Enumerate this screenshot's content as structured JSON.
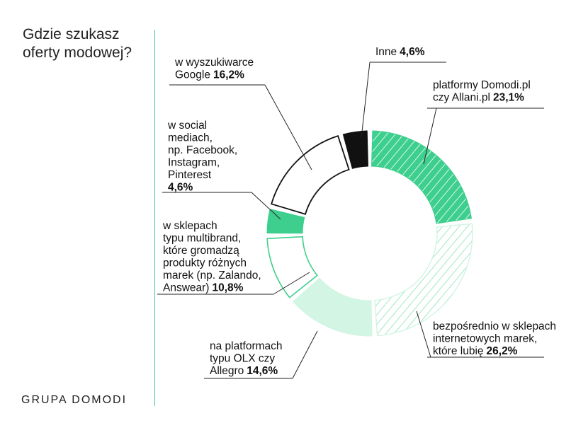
{
  "title": "Gdzie szukasz\noferty modowej?",
  "brand": "GRUPA DOMODI",
  "colors": {
    "green": "#3ecf8e",
    "green_light": "#d2f5e4",
    "green_pale": "#e6faf0",
    "black": "#111111",
    "white": "#ffffff",
    "divider": "#3fcf8e"
  },
  "chart_data": {
    "type": "pie",
    "variant": "donut",
    "title": "Gdzie szukasz oferty modowej?",
    "unit": "%",
    "slices": [
      {
        "label_lines": [
          "platformy Domodi.pl",
          "czy Allani.pl"
        ],
        "value": 23.1,
        "value_text": "23,1%",
        "fill": "hatch-solid"
      },
      {
        "label_lines": [
          "bezpośrednio w sklepach",
          "internetowych marek,",
          "które lubię"
        ],
        "value": 26.2,
        "value_text": "26,2%",
        "fill": "hatch-light"
      },
      {
        "label_lines": [
          "na platformach",
          "typu OLX czy",
          "Allegro"
        ],
        "value": 14.6,
        "value_text": "14,6%",
        "fill": "light-green"
      },
      {
        "label_lines": [
          "w sklepach",
          "typu multibrand,",
          "które gromadzą",
          "produkty różnych",
          "marek (np. Zalando,",
          "Answear)"
        ],
        "value": 10.8,
        "value_text": "10,8%",
        "fill": "outline-green"
      },
      {
        "label_lines": [
          "w social",
          "mediach,",
          "np. Facebook,",
          "Instagram,",
          "Pinterest"
        ],
        "value": 4.6,
        "value_text": "4,6%",
        "value_own_line": true,
        "fill": "solid-green"
      },
      {
        "label_lines": [
          "w wyszukiwarce",
          "Google"
        ],
        "value": 16.2,
        "value_text": "16,2%",
        "fill": "outline-black"
      },
      {
        "label_lines": [
          "Inne"
        ],
        "value": 4.6,
        "value_text": "4,6%",
        "fill": "solid-black"
      }
    ]
  }
}
